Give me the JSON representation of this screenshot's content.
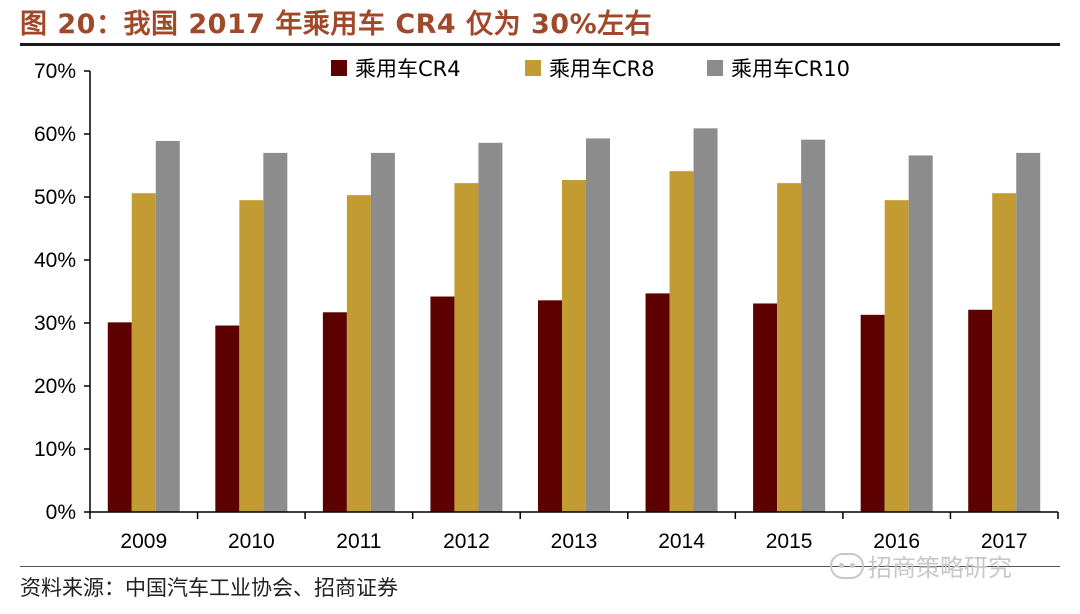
{
  "header": {
    "title": "图 20：我国 2017 年乘用车 CR4 仅为 30%左右"
  },
  "footer": {
    "source": "资料来源：中国汽车工业协会、招商证券",
    "watermark": "招商策略研究"
  },
  "chart_data": {
    "type": "bar",
    "title": "",
    "xlabel": "",
    "ylabel": "",
    "categories": [
      "2009",
      "2010",
      "2011",
      "2012",
      "2013",
      "2014",
      "2015",
      "2016",
      "2017"
    ],
    "series": [
      {
        "name": "乘用车CR4",
        "color": "#5c0000",
        "values": [
          30.1,
          29.6,
          31.7,
          34.2,
          33.6,
          34.7,
          33.1,
          31.3,
          32.1
        ]
      },
      {
        "name": "乘用车CR8",
        "color": "#c39b33",
        "values": [
          50.6,
          49.5,
          50.3,
          52.2,
          52.7,
          54.1,
          52.2,
          49.5,
          50.6
        ]
      },
      {
        "name": "乘用车CR10",
        "color": "#8c8c8c",
        "values": [
          58.9,
          57.0,
          57.0,
          58.6,
          59.3,
          60.9,
          59.1,
          56.6,
          57.0
        ]
      }
    ],
    "ylim": [
      0,
      70
    ],
    "yticks": [
      0,
      10,
      20,
      30,
      40,
      50,
      60,
      70
    ],
    "ytick_labels": [
      "0%",
      "10%",
      "20%",
      "30%",
      "40%",
      "50%",
      "60%",
      "70%"
    ],
    "grid": false,
    "legend": "top-center"
  }
}
